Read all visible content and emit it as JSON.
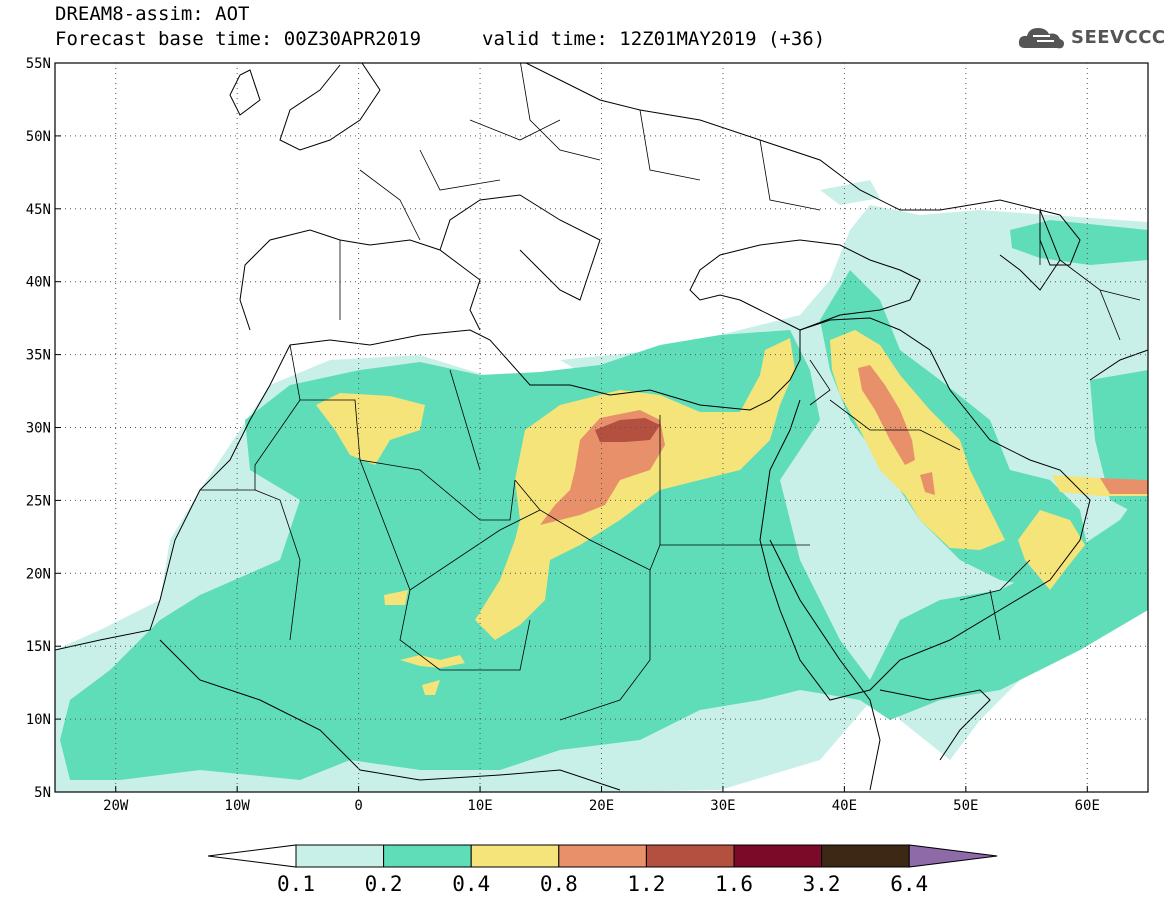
{
  "header": {
    "line1": "DREAM8-assim: AOT",
    "line2_left": "Forecast base time: 00Z30APR2019",
    "line2_right": "valid time: 12Z01MAY2019 (+36)"
  },
  "logo": {
    "text": "SEEVCCC",
    "icon": "cloud-icon"
  },
  "map": {
    "lat_labels": [
      "55N",
      "50N",
      "45N",
      "40N",
      "35N",
      "30N",
      "25N",
      "20N",
      "15N",
      "10N",
      "5N"
    ],
    "lon_labels": [
      "20W",
      "10W",
      "0",
      "10E",
      "20E",
      "30E",
      "40E",
      "50E",
      "60E"
    ],
    "lon_range": [
      -25,
      65
    ],
    "lat_range": [
      5,
      55
    ]
  },
  "colorbar": {
    "levels": [
      "0.1",
      "0.2",
      "0.4",
      "0.8",
      "1.2",
      "1.6",
      "3.2",
      "6.4"
    ],
    "colors": [
      "#ffffff",
      "#c8f0e8",
      "#5fdcb8",
      "#f5e47a",
      "#e8906a",
      "#b45040",
      "#7a0a28",
      "#3c2814",
      "#8e6aa8"
    ]
  }
}
